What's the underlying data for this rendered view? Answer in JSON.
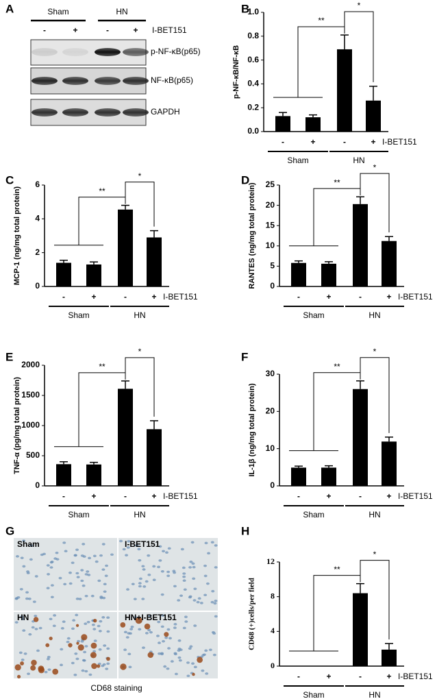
{
  "panel_labels": [
    "A",
    "B",
    "C",
    "D",
    "E",
    "F",
    "G",
    "H"
  ],
  "blot": {
    "groups": [
      "Sham",
      "HN"
    ],
    "lanes": [
      "-",
      "+",
      "-",
      "+"
    ],
    "treatment": "I-BET151",
    "rows": [
      "p-NF-κB(p65)",
      "NF-κB(p65)",
      "GAPDH"
    ]
  },
  "staining": {
    "quadrants": [
      "Sham",
      "I-BET151",
      "HN",
      "HN+I-BET151"
    ],
    "caption": "CD68  staining"
  },
  "chart_data": [
    {
      "type": "bar",
      "ylabel": "p-NF-κB/NF-κB",
      "categories": [
        "-",
        "+",
        "-",
        "+"
      ],
      "groups": [
        "Sham",
        "HN"
      ],
      "treatment": "I-BET151",
      "values": [
        0.13,
        0.12,
        0.69,
        0.26
      ],
      "errors": [
        0.03,
        0.02,
        0.12,
        0.12
      ],
      "color": "#000000",
      "ylim": [
        0,
        1.0
      ],
      "yticks": [
        {
          "value": 0,
          "label": "0.0"
        },
        {
          "value": 0.2,
          "label": "0.2"
        },
        {
          "value": 0.4,
          "label": "0.4"
        },
        {
          "value": 0.6,
          "label": "0.6"
        },
        {
          "value": 0.8,
          "label": "0.8"
        },
        {
          "value": 1.0,
          "label": "1.0"
        }
      ],
      "significance": [
        "**",
        "*"
      ]
    },
    {
      "type": "bar",
      "ylabel": "MCP-1 (ng/mg total protein)",
      "categories": [
        "-",
        "+",
        "-",
        "+"
      ],
      "groups": [
        "Sham",
        "HN"
      ],
      "treatment": "I-BET151",
      "values": [
        1.4,
        1.3,
        4.55,
        2.9
      ],
      "errors": [
        0.15,
        0.15,
        0.25,
        0.4
      ],
      "color": "#000000",
      "ylim": [
        0,
        6
      ],
      "yticks": [
        0,
        2,
        4,
        6
      ],
      "significance": [
        "**",
        "*"
      ]
    },
    {
      "type": "bar",
      "ylabel": "RANTES (ng/mg total protein)",
      "categories": [
        "-",
        "+",
        "-",
        "+"
      ],
      "groups": [
        "Sham",
        "HN"
      ],
      "treatment": "I-BET151",
      "values": [
        5.8,
        5.6,
        20.3,
        11.2
      ],
      "errors": [
        0.5,
        0.5,
        1.8,
        1.1
      ],
      "color": "#000000",
      "ylim": [
        0,
        25
      ],
      "yticks": [
        0,
        5,
        10,
        15,
        20,
        25
      ],
      "significance": [
        "**",
        "*"
      ]
    },
    {
      "type": "bar",
      "ylabel": "TNF-α (pg/mg total protein)",
      "categories": [
        "-",
        "+",
        "-",
        "+"
      ],
      "groups": [
        "Sham",
        "HN"
      ],
      "treatment": "I-BET151",
      "values": [
        360,
        355,
        1610,
        940
      ],
      "errors": [
        40,
        35,
        130,
        140
      ],
      "color": "#000000",
      "ylim": [
        0,
        2000
      ],
      "yticks": [
        0,
        500,
        1000,
        1500,
        2000
      ],
      "significance": [
        "**",
        "*"
      ]
    },
    {
      "type": "bar",
      "ylabel": "IL-1β (ng/mg total protein)",
      "categories": [
        "-",
        "+",
        "-",
        "+"
      ],
      "groups": [
        "Sham",
        "HN"
      ],
      "treatment": "I-BET151",
      "values": [
        4.9,
        4.9,
        26,
        11.9
      ],
      "errors": [
        0.4,
        0.5,
        2.2,
        1.2
      ],
      "color": "#000000",
      "ylim": [
        0,
        30
      ],
      "yticks": [
        0,
        10,
        20,
        30
      ],
      "significance": [
        "**",
        "*"
      ]
    },
    {
      "type": "bar",
      "ylabel": "CD68 (+)cells/per field",
      "categories": [
        "-",
        "+",
        "-",
        "+"
      ],
      "groups": [
        "Sham",
        "HN"
      ],
      "treatment": "I-BET151",
      "values": [
        0,
        0,
        8.4,
        1.9
      ],
      "errors": [
        0,
        0,
        1.1,
        0.7
      ],
      "color": "#000000",
      "ylim": [
        0,
        12
      ],
      "yticks": [
        0,
        4,
        8,
        12
      ],
      "significance": [
        "**",
        "*"
      ]
    }
  ]
}
